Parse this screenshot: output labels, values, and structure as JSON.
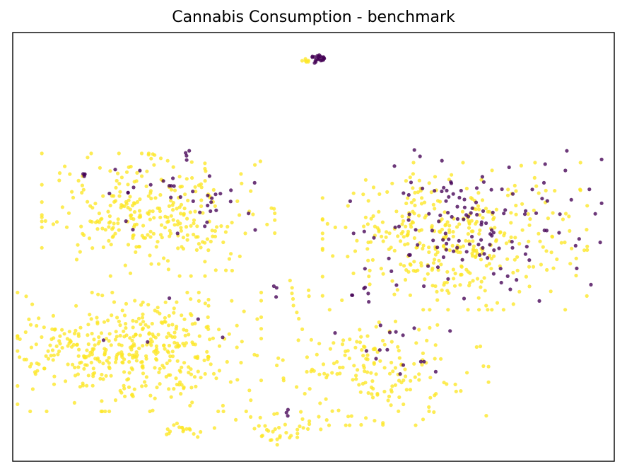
{
  "chart_data": {
    "type": "scatter",
    "title": "Cannabis Consumption - benchmark",
    "xlabel": "",
    "ylabel": "",
    "xlim": [
      0,
      100
    ],
    "ylim": [
      0,
      100
    ],
    "grid": false,
    "ticks": false,
    "colors": {
      "yellow": "#fde725",
      "purple": "#440154"
    },
    "opacity": 0.78,
    "clusters": [
      {
        "kind": "yellow",
        "cx": 49.0,
        "cy": 93.4,
        "sx": 0.7,
        "sy": 0.35,
        "n": 6
      },
      {
        "kind": "purple",
        "cx": 51.1,
        "cy": 94.0,
        "sx": 0.7,
        "sy": 0.5,
        "n": 20
      },
      {
        "kind": "yellow",
        "cx": 24.2,
        "cy": 57.5,
        "sx": 8.8,
        "sy": 6.5,
        "n": 300
      },
      {
        "kind": "purple",
        "cx": 26.0,
        "cy": 63.2,
        "sx": 6.5,
        "sy": 4.2,
        "n": 32
      },
      {
        "kind": "purple",
        "cx": 12.0,
        "cy": 66.8,
        "sx": 0.4,
        "sy": 0.3,
        "n": 4
      },
      {
        "kind": "purple",
        "cx": 34.0,
        "cy": 57.0,
        "sx": 3.0,
        "sy": 3.8,
        "n": 8
      },
      {
        "kind": "yellow",
        "cx": 19.3,
        "cy": 25.5,
        "sx": 10.0,
        "sy": 6.3,
        "n": 440
      },
      {
        "kind": "purple",
        "cx": 25.0,
        "cy": 30.5,
        "sx": 4.5,
        "sy": 4.0,
        "n": 5
      },
      {
        "kind": "yellow",
        "cx": 28.0,
        "cy": 7.7,
        "sx": 3.2,
        "sy": 1.0,
        "n": 18
      },
      {
        "kind": "yellow",
        "cx": 44.5,
        "cy": 8.0,
        "sx": 3.5,
        "sy": 2.0,
        "n": 38
      },
      {
        "kind": "purple",
        "cx": 44.8,
        "cy": 11.0,
        "sx": 1.0,
        "sy": 0.8,
        "n": 3
      },
      {
        "kind": "yellow",
        "cx": 47.5,
        "cy": 38.0,
        "sx": 1.5,
        "sy": 3.8,
        "n": 9
      },
      {
        "kind": "purple",
        "cx": 44.0,
        "cy": 40.0,
        "sx": 0.8,
        "sy": 1.4,
        "n": 3
      },
      {
        "kind": "yellow",
        "cx": 61.5,
        "cy": 20.5,
        "sx": 8.0,
        "sy": 5.5,
        "n": 170
      },
      {
        "kind": "purple",
        "cx": 64.5,
        "cy": 25.5,
        "sx": 5.5,
        "sy": 4.5,
        "n": 16
      },
      {
        "kind": "yellow",
        "cx": 73.5,
        "cy": 52.5,
        "sx": 10.0,
        "sy": 7.8,
        "n": 380
      },
      {
        "kind": "purple",
        "cx": 77.0,
        "cy": 55.0,
        "sx": 9.5,
        "sy": 8.0,
        "n": 135
      },
      {
        "kind": "purple",
        "cx": 58.0,
        "cy": 38.5,
        "sx": 1.8,
        "sy": 1.2,
        "n": 6
      }
    ]
  }
}
